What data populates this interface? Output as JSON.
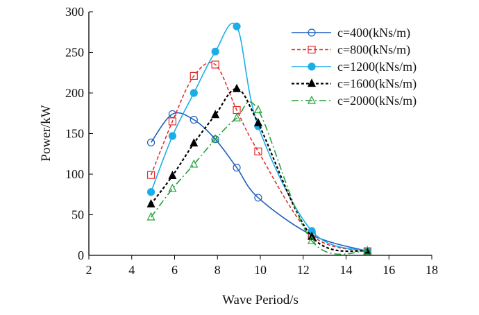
{
  "chart_data": {
    "type": "line",
    "title": "",
    "xlabel": "Wave Period/s",
    "ylabel": "Power/kW",
    "xlim": [
      2,
      18
    ],
    "ylim": [
      0,
      300
    ],
    "xticks": [
      2,
      4,
      6,
      8,
      10,
      12,
      14,
      16,
      18
    ],
    "yticks": [
      0,
      50,
      100,
      150,
      200,
      250,
      300
    ],
    "grid": false,
    "legend_position": "top-right",
    "x": [
      4.9,
      5.9,
      6.9,
      7.9,
      8.9,
      9.9,
      12.4,
      15
    ],
    "series": [
      {
        "name": "c=400(kNs/m)",
        "color": "#1f5fbf",
        "dash": "",
        "marker": "circle-open",
        "values": [
          139,
          174,
          167,
          143,
          108,
          71,
          25,
          5
        ]
      },
      {
        "name": "c=800(kNs/m)",
        "color": "#e03030",
        "dash": "5,3",
        "marker": "square-open",
        "values": [
          99,
          165,
          221,
          235,
          179,
          128,
          25,
          5
        ]
      },
      {
        "name": "c=1200(kNs/m)",
        "color": "#1aaee8",
        "dash": "",
        "marker": "circle-filled",
        "values": [
          78,
          147,
          200,
          251,
          282,
          159,
          30,
          5
        ]
      },
      {
        "name": "c=1600(kNs/m)",
        "color": "#000000",
        "dash": "4,3",
        "marker": "triangle-filled",
        "values": [
          63,
          98,
          138,
          173,
          205,
          163,
          23,
          5
        ]
      },
      {
        "name": "c=2000(kNs/m)",
        "color": "#22a03a",
        "dash": "10,4,2,4",
        "marker": "triangle-open",
        "values": [
          47,
          82,
          112,
          143,
          169,
          179,
          18,
          5
        ]
      }
    ]
  }
}
